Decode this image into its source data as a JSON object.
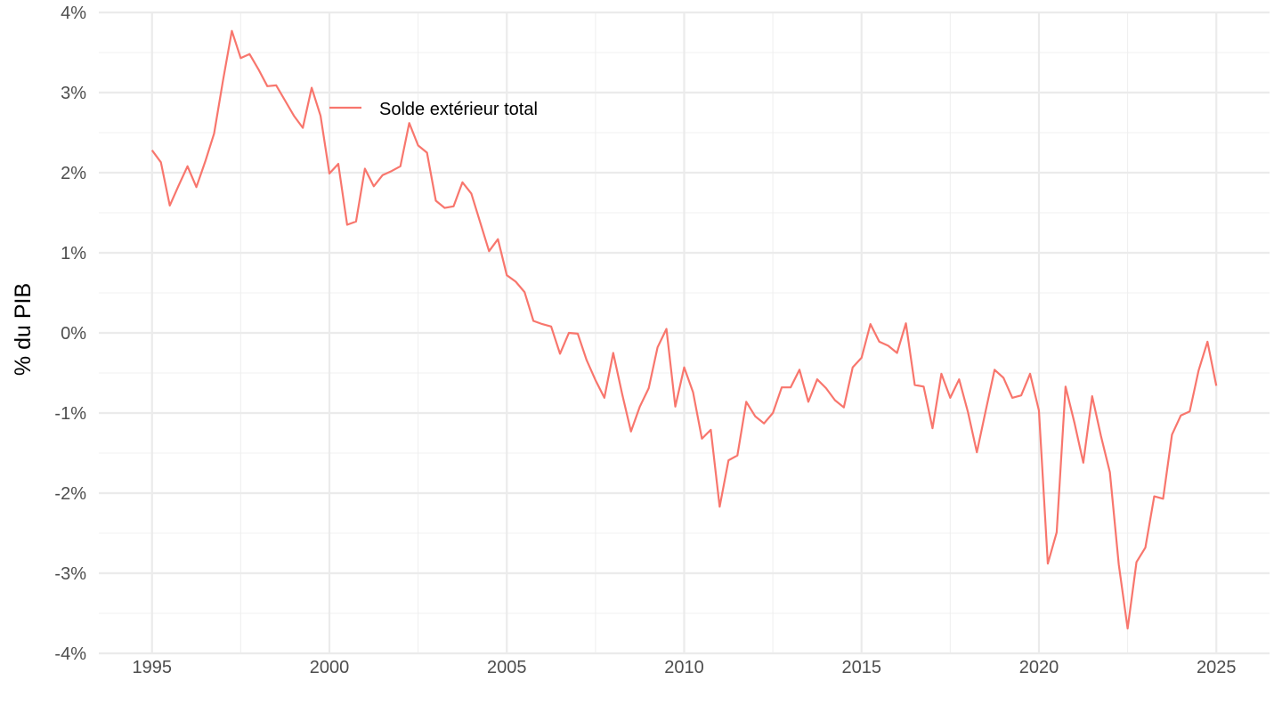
{
  "chart_data": {
    "type": "line",
    "title": "",
    "xlabel": "",
    "ylabel": "% du PIB",
    "xlim": [
      1993.5,
      2026.5
    ],
    "ylim": [
      -4,
      4
    ],
    "x_ticks": [
      1995,
      2000,
      2005,
      2010,
      2015,
      2020,
      2025
    ],
    "x_tick_labels": [
      "1995",
      "2000",
      "2005",
      "2010",
      "2015",
      "2020",
      "2025"
    ],
    "y_ticks": [
      -4,
      -3,
      -2,
      -1,
      0,
      1,
      2,
      3,
      4
    ],
    "y_tick_labels": [
      "-4%",
      "-3%",
      "-2%",
      "-1%",
      "0%",
      "1%",
      "2%",
      "3%",
      "4%"
    ],
    "grid": true,
    "legend_position": "inside top-left",
    "series": [
      {
        "name": "Solde extérieur total",
        "color": "#F8766D",
        "points": [
          [
            1995.0,
            2.28
          ],
          [
            1995.25,
            2.13
          ],
          [
            1995.5,
            1.59
          ],
          [
            1995.75,
            1.84
          ],
          [
            1996.0,
            2.08
          ],
          [
            1996.25,
            1.82
          ],
          [
            1996.5,
            2.14
          ],
          [
            1996.75,
            2.49
          ],
          [
            1997.0,
            3.15
          ],
          [
            1997.25,
            3.77
          ],
          [
            1997.5,
            3.43
          ],
          [
            1997.75,
            3.48
          ],
          [
            1998.0,
            3.29
          ],
          [
            1998.25,
            3.08
          ],
          [
            1998.5,
            3.09
          ],
          [
            1998.75,
            2.9
          ],
          [
            1999.0,
            2.71
          ],
          [
            1999.25,
            2.56
          ],
          [
            1999.5,
            3.06
          ],
          [
            1999.75,
            2.71
          ],
          [
            2000.0,
            1.99
          ],
          [
            2000.25,
            2.11
          ],
          [
            2000.5,
            1.35
          ],
          [
            2000.75,
            1.39
          ],
          [
            2001.0,
            2.05
          ],
          [
            2001.25,
            1.83
          ],
          [
            2001.5,
            1.97
          ],
          [
            2001.75,
            2.02
          ],
          [
            2002.0,
            2.08
          ],
          [
            2002.25,
            2.62
          ],
          [
            2002.5,
            2.34
          ],
          [
            2002.75,
            2.25
          ],
          [
            2003.0,
            1.65
          ],
          [
            2003.25,
            1.56
          ],
          [
            2003.5,
            1.58
          ],
          [
            2003.75,
            1.88
          ],
          [
            2004.0,
            1.74
          ],
          [
            2004.25,
            1.38
          ],
          [
            2004.5,
            1.02
          ],
          [
            2004.75,
            1.17
          ],
          [
            2005.0,
            0.72
          ],
          [
            2005.25,
            0.64
          ],
          [
            2005.5,
            0.51
          ],
          [
            2005.75,
            0.15
          ],
          [
            2006.0,
            0.11
          ],
          [
            2006.25,
            0.08
          ],
          [
            2006.5,
            -0.26
          ],
          [
            2006.75,
            0.0
          ],
          [
            2007.0,
            -0.01
          ],
          [
            2007.25,
            -0.34
          ],
          [
            2007.5,
            -0.59
          ],
          [
            2007.75,
            -0.81
          ],
          [
            2008.0,
            -0.25
          ],
          [
            2008.25,
            -0.76
          ],
          [
            2008.5,
            -1.23
          ],
          [
            2008.75,
            -0.92
          ],
          [
            2009.0,
            -0.69
          ],
          [
            2009.25,
            -0.18
          ],
          [
            2009.5,
            0.05
          ],
          [
            2009.75,
            -0.92
          ],
          [
            2010.0,
            -0.43
          ],
          [
            2010.25,
            -0.74
          ],
          [
            2010.5,
            -1.32
          ],
          [
            2010.75,
            -1.21
          ],
          [
            2011.0,
            -2.17
          ],
          [
            2011.25,
            -1.59
          ],
          [
            2011.5,
            -1.53
          ],
          [
            2011.75,
            -0.86
          ],
          [
            2012.0,
            -1.04
          ],
          [
            2012.25,
            -1.13
          ],
          [
            2012.5,
            -1.0
          ],
          [
            2012.75,
            -0.68
          ],
          [
            2013.0,
            -0.68
          ],
          [
            2013.25,
            -0.46
          ],
          [
            2013.5,
            -0.86
          ],
          [
            2013.75,
            -0.58
          ],
          [
            2014.0,
            -0.69
          ],
          [
            2014.25,
            -0.84
          ],
          [
            2014.5,
            -0.93
          ],
          [
            2014.75,
            -0.43
          ],
          [
            2015.0,
            -0.31
          ],
          [
            2015.25,
            0.11
          ],
          [
            2015.5,
            -0.11
          ],
          [
            2015.75,
            -0.16
          ],
          [
            2016.0,
            -0.25
          ],
          [
            2016.25,
            0.12
          ],
          [
            2016.5,
            -0.65
          ],
          [
            2016.75,
            -0.67
          ],
          [
            2017.0,
            -1.19
          ],
          [
            2017.25,
            -0.51
          ],
          [
            2017.5,
            -0.81
          ],
          [
            2017.75,
            -0.58
          ],
          [
            2018.0,
            -0.99
          ],
          [
            2018.25,
            -1.49
          ],
          [
            2018.5,
            -0.97
          ],
          [
            2018.75,
            -0.46
          ],
          [
            2019.0,
            -0.56
          ],
          [
            2019.25,
            -0.81
          ],
          [
            2019.5,
            -0.78
          ],
          [
            2019.75,
            -0.51
          ],
          [
            2020.0,
            -0.97
          ],
          [
            2020.25,
            -2.88
          ],
          [
            2020.5,
            -2.49
          ],
          [
            2020.75,
            -0.67
          ],
          [
            2021.0,
            -1.12
          ],
          [
            2021.25,
            -1.62
          ],
          [
            2021.5,
            -0.79
          ],
          [
            2021.75,
            -1.29
          ],
          [
            2022.0,
            -1.74
          ],
          [
            2022.25,
            -2.89
          ],
          [
            2022.5,
            -3.69
          ],
          [
            2022.75,
            -2.86
          ],
          [
            2023.0,
            -2.68
          ],
          [
            2023.25,
            -2.04
          ],
          [
            2023.5,
            -2.07
          ],
          [
            2023.75,
            -1.27
          ],
          [
            2024.0,
            -1.03
          ],
          [
            2024.25,
            -0.98
          ],
          [
            2024.5,
            -0.47
          ],
          [
            2024.75,
            -0.11
          ],
          [
            2025.0,
            -0.66
          ]
        ]
      }
    ]
  }
}
